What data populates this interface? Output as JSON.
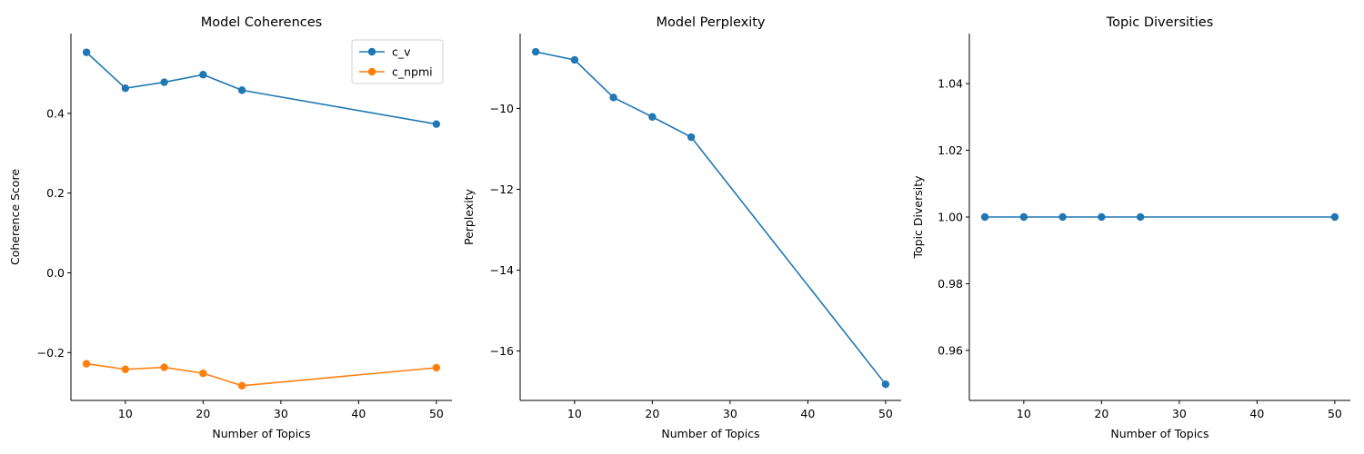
{
  "chart_data": [
    {
      "type": "line",
      "title": "Model Coherences",
      "xlabel": "Number of Topics",
      "ylabel": "Coherence Score",
      "x": [
        5,
        10,
        15,
        20,
        25,
        50
      ],
      "xlim": [
        3,
        52
      ],
      "ylim": [
        -0.32,
        0.6
      ],
      "xticks": [
        10,
        20,
        30,
        40,
        50
      ],
      "yticks": [
        -0.2,
        0.0,
        0.2,
        0.4
      ],
      "ytick_labels": [
        "−0.2",
        "0.0",
        "0.2",
        "0.4"
      ],
      "grid": false,
      "legend": "top-right",
      "series": [
        {
          "name": "c_v",
          "color": "#1f77b4",
          "values": [
            0.553,
            0.463,
            0.478,
            0.497,
            0.458,
            0.373
          ]
        },
        {
          "name": "c_npmi",
          "color": "#ff7f0e",
          "values": [
            -0.228,
            -0.242,
            -0.237,
            -0.252,
            -0.283,
            -0.238
          ]
        }
      ]
    },
    {
      "type": "line",
      "title": "Model Perplexity",
      "xlabel": "Number of Topics",
      "ylabel": "Perplexity",
      "x": [
        5,
        10,
        15,
        20,
        25,
        50
      ],
      "xlim": [
        3,
        52
      ],
      "ylim": [
        -17.22,
        -8.15
      ],
      "xticks": [
        10,
        20,
        30,
        40,
        50
      ],
      "yticks": [
        -16,
        -14,
        -12,
        -10
      ],
      "ytick_labels": [
        "−16",
        "−14",
        "−12",
        "−10"
      ],
      "grid": false,
      "legend": "none",
      "series": [
        {
          "color": "#1f77b4",
          "values": [
            -8.6,
            -8.8,
            -9.73,
            -10.21,
            -10.71,
            -16.82
          ]
        }
      ]
    },
    {
      "type": "line",
      "title": "Topic Diversities",
      "xlabel": "Number of Topics",
      "ylabel": "Topic Diversity",
      "x": [
        5,
        10,
        15,
        20,
        25,
        50
      ],
      "xlim": [
        3,
        52
      ],
      "ylim": [
        0.945,
        1.055
      ],
      "xticks": [
        10,
        20,
        30,
        40,
        50
      ],
      "yticks": [
        0.96,
        0.98,
        1.0,
        1.02,
        1.04
      ],
      "ytick_labels": [
        "0.96",
        "0.98",
        "1.00",
        "1.02",
        "1.04"
      ],
      "grid": false,
      "legend": "none",
      "series": [
        {
          "color": "#1f77b4",
          "values": [
            1.0,
            1.0,
            1.0,
            1.0,
            1.0,
            1.0
          ]
        }
      ]
    }
  ]
}
